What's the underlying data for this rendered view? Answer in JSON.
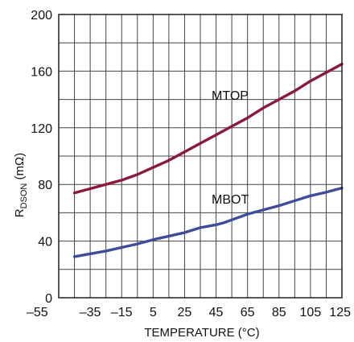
{
  "chart_data": {
    "type": "line",
    "title": "",
    "xlabel": "TEMPERATURE (°C)",
    "ylabel_main": "R",
    "ylabel_sub": "DSON",
    "ylabel_unit": " (mΩ)",
    "xlim": [
      -55,
      125
    ],
    "ylim": [
      0,
      200
    ],
    "x_ticks": [
      -55,
      -35,
      -15,
      5,
      25,
      45,
      65,
      85,
      105,
      125
    ],
    "x_tick_labels": [
      "–55",
      "–35",
      "–15",
      "5",
      "25",
      "45",
      "65",
      "85",
      "105",
      "125"
    ],
    "y_ticks": [
      0,
      40,
      80,
      120,
      160,
      200
    ],
    "y_tick_labels": [
      "0",
      "40",
      "80",
      "120",
      "160",
      "200"
    ],
    "x_grid": [
      -55,
      -45,
      -35,
      -25,
      -15,
      -5,
      5,
      15,
      25,
      35,
      45,
      55,
      65,
      75,
      85,
      95,
      105,
      115,
      125
    ],
    "y_grid": [
      0,
      20,
      40,
      60,
      80,
      100,
      120,
      140,
      160,
      180,
      200
    ],
    "grid": true,
    "series": [
      {
        "name": "MTOP",
        "color": "#8b1a3a",
        "x": [
          -45,
          -35,
          -25,
          -15,
          -5,
          5,
          15,
          25,
          35,
          45,
          55,
          65,
          75,
          85,
          95,
          105,
          115,
          125
        ],
        "y": [
          74,
          77,
          80,
          83,
          87,
          92,
          97,
          103,
          109,
          115,
          121,
          127,
          134,
          140,
          146,
          153,
          159,
          165
        ]
      },
      {
        "name": "MBOT",
        "color": "#3f4c9a",
        "x": [
          -45,
          -35,
          -25,
          -15,
          -5,
          5,
          15,
          25,
          35,
          45,
          50,
          55,
          65,
          75,
          85,
          95,
          105,
          115,
          125
        ],
        "y": [
          29,
          31,
          33,
          35.5,
          38,
          41,
          43.5,
          46,
          49.5,
          51.5,
          53,
          55,
          59,
          62,
          65,
          68.5,
          72,
          74.5,
          77.5
        ]
      }
    ]
  }
}
